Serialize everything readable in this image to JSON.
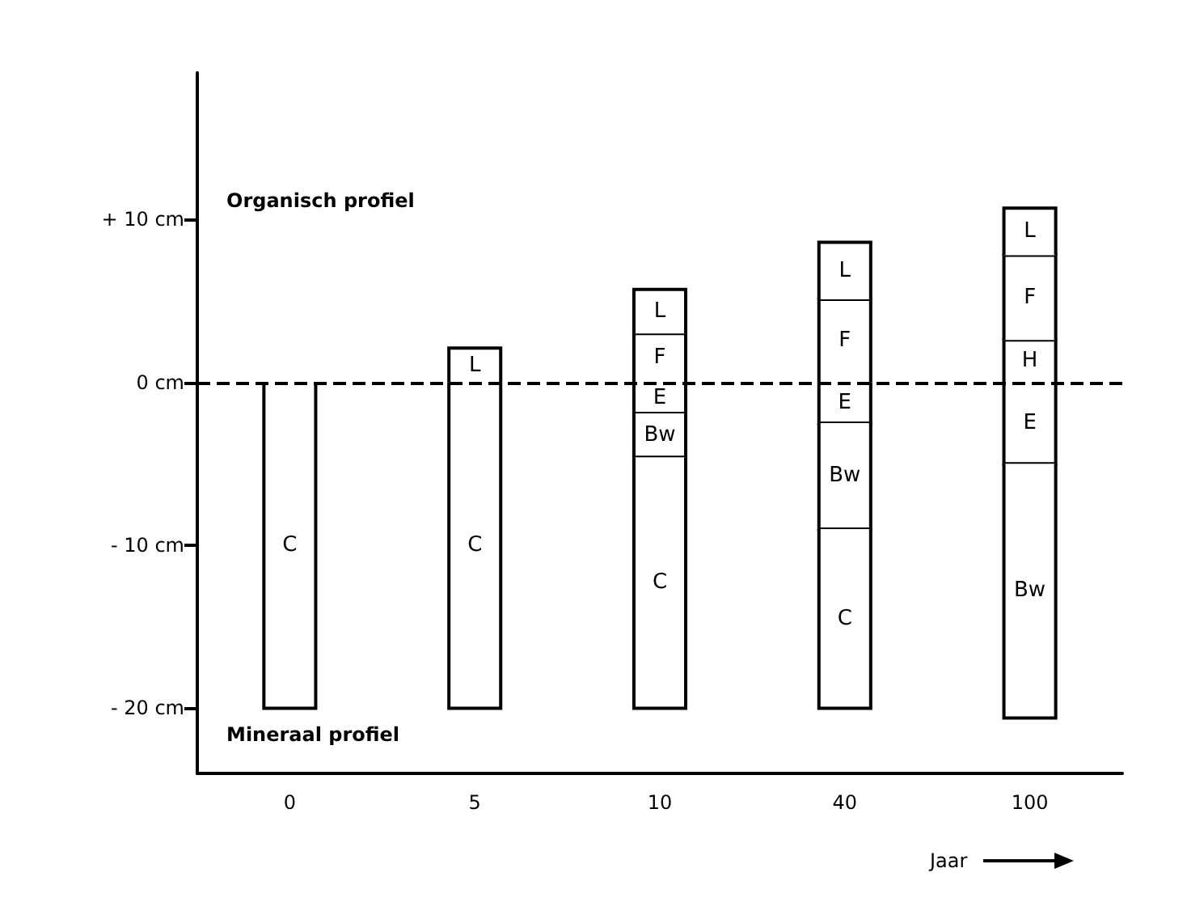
{
  "chart_data": {
    "type": "bar",
    "stacked": true,
    "xlabel": "Jaar",
    "categories": [
      "0",
      "5",
      "10",
      "40",
      "100"
    ],
    "series": [
      {
        "name": "E",
        "color": "#ffffff",
        "values": [
          null,
          null,
          -1.9,
          -2.5,
          -5
        ]
      },
      {
        "name": "Bw",
        "color": "#ffffff",
        "values": [
          null,
          null,
          -2.7,
          -6.5,
          -15.6
        ]
      },
      {
        "name": "C",
        "color": "#ffffff",
        "values": [
          -20,
          -20,
          -15.4,
          -11,
          null
        ]
      },
      {
        "name": "H",
        "color": "#ffffff",
        "values": [
          null,
          null,
          null,
          null,
          2.6
        ]
      },
      {
        "name": "F",
        "color": "#ffffff",
        "values": [
          null,
          null,
          3,
          5.1,
          5.2
        ]
      },
      {
        "name": "L",
        "color": "#ffffff",
        "values": [
          null,
          2.1,
          2.7,
          3.5,
          2.9
        ]
      }
    ],
    "ylim": [
      -24,
      19
    ],
    "yticks": [
      {
        "value": -20,
        "label": "- 20 cm"
      },
      {
        "value": -10,
        "label": "- 10 cm"
      },
      {
        "value": 0,
        "label": "0 cm"
      },
      {
        "value": 10,
        "label": "+ 10 cm"
      }
    ],
    "ref_lines": [
      {
        "axis": "y",
        "value": 0,
        "color": "#000000",
        "line_style": "dashed"
      }
    ],
    "annotations": [
      "Organisch profiel",
      "Mineraal profiel"
    ],
    "grid": false,
    "legend": false
  }
}
